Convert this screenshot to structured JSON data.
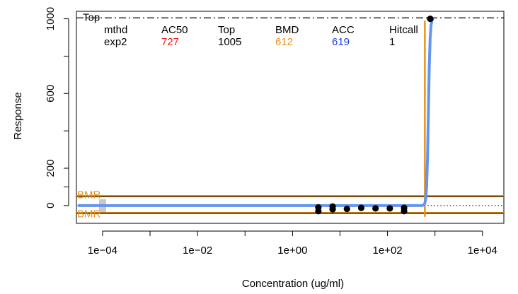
{
  "chart_data": {
    "type": "scatter",
    "xlabel": "Concentration (ug/ml)",
    "ylabel": "Response",
    "x_scale": "log10",
    "xlim_log10": [
      -4.55,
      4.45
    ],
    "ylim": [
      -95,
      1040
    ],
    "x_ticks": [
      {
        "log10": -4,
        "label": "1e−04"
      },
      {
        "log10": -3,
        "label": ""
      },
      {
        "log10": -2,
        "label": "1e−02"
      },
      {
        "log10": -1,
        "label": ""
      },
      {
        "log10": 0,
        "label": "1e+00"
      },
      {
        "log10": 1,
        "label": ""
      },
      {
        "log10": 2,
        "label": "1e+02"
      },
      {
        "log10": 3,
        "label": ""
      },
      {
        "log10": 4,
        "label": "1e+04"
      }
    ],
    "y_ticks": [
      {
        "value": 0,
        "label": "0"
      },
      {
        "value": 100,
        "label": ""
      },
      {
        "value": 200,
        "label": "200"
      },
      {
        "value": 400,
        "label": ""
      },
      {
        "value": 600,
        "label": "600"
      },
      {
        "value": 800,
        "label": ""
      },
      {
        "value": 1000,
        "label": "1000"
      }
    ],
    "points_log10": [
      {
        "x": 0.544,
        "y": -30
      },
      {
        "x": 0.544,
        "y": -10
      },
      {
        "x": 0.845,
        "y": -20
      },
      {
        "x": 0.845,
        "y": -5
      },
      {
        "x": 1.146,
        "y": -18
      },
      {
        "x": 1.447,
        "y": -12
      },
      {
        "x": 1.748,
        "y": -15
      },
      {
        "x": 2.049,
        "y": -15
      },
      {
        "x": 2.35,
        "y": -12
      },
      {
        "x": 2.35,
        "y": -30
      },
      {
        "x": 2.9,
        "y": 1000
      }
    ],
    "zero_point_log10": -4,
    "fit_curve": {
      "model": "hill",
      "top": 1005,
      "ac50": 727,
      "n": 25,
      "color": "#6495ed"
    },
    "reference_lines": {
      "top": {
        "value": 1005,
        "label": "Top",
        "style": "dotdash"
      },
      "bmr_upper": {
        "value": 50,
        "label": "BMR",
        "color": "#e8901a"
      },
      "bmr_lower": {
        "value": -40,
        "label": "BMR",
        "color": "#e8901a"
      },
      "cutoff_dotted": {
        "value": 0
      },
      "bmd_x": {
        "value": 612,
        "color": "#e8901a"
      }
    },
    "summary_table": {
      "headers": [
        "mthd",
        "AC50",
        "Top",
        "BMD",
        "ACC",
        "Hitcall"
      ],
      "row": [
        "exp2",
        "727",
        "1005",
        "612",
        "619",
        "1"
      ],
      "colors": [
        "#000000",
        "#e41a1c",
        "#000000",
        "#e8901a",
        "#1f3fd6",
        "#000000"
      ]
    },
    "colors": {
      "point": "#000000",
      "bmr": "#e8901a",
      "fit": "#6495ed",
      "ac50": "#e41a1c",
      "acc": "#1f3fd6"
    }
  }
}
